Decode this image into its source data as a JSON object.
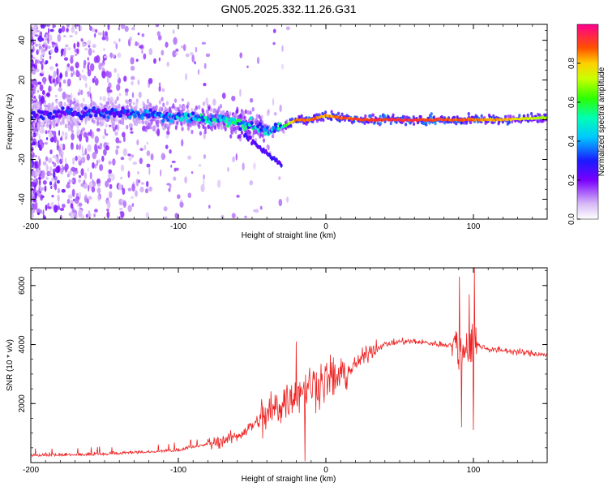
{
  "figure_title": "GN05.2025.332.11.26.G31",
  "chart_data": [
    {
      "type": "heatmap",
      "title": "GN05.2025.332.11.26.G31",
      "xlabel": "Height of straight line (km)",
      "ylabel": "Frequency (Hz)",
      "xlim": [
        -200,
        150
      ],
      "ylim": [
        -50,
        48
      ],
      "xticks": [
        -200,
        -100,
        0,
        100
      ],
      "yticks": [
        -40,
        -20,
        0,
        20,
        40
      ],
      "colorbar": {
        "label": "Normalized spectral amplitude",
        "range": [
          0,
          1
        ],
        "ticks": [
          0.0,
          0.2,
          0.4,
          0.6,
          0.8
        ],
        "tick_labels": [
          "0.0",
          "0.2",
          "0.4",
          "0.6",
          "0.8"
        ]
      },
      "ridge": {
        "description_points_height_km": [
          -200,
          -160,
          -120,
          -90,
          -70,
          -55,
          -45,
          -35,
          -30,
          -20,
          -10,
          0,
          10,
          30,
          60,
          90,
          100,
          120,
          150
        ],
        "frequency_hz": [
          2,
          4,
          3,
          1,
          0,
          -2,
          -4,
          -6,
          -4,
          0,
          0,
          2,
          1,
          0,
          0,
          0,
          0,
          0,
          1
        ],
        "amplitude": [
          0.25,
          0.3,
          0.35,
          0.45,
          0.5,
          0.5,
          0.45,
          0.4,
          0.5,
          0.9,
          0.9,
          0.85,
          0.9,
          0.95,
          0.95,
          0.9,
          0.9,
          0.85,
          0.7
        ]
      }
    },
    {
      "type": "line",
      "xlabel": "Height of straight line (km)",
      "ylabel": "SNR (10 * v/v)",
      "xlim": [
        -200,
        150
      ],
      "ylim": [
        0,
        6600
      ],
      "xticks": [
        -200,
        -100,
        0,
        100
      ],
      "yticks": [
        2000,
        4000,
        6000
      ],
      "series": [
        {
          "name": "SNR",
          "color": "#ee2222",
          "trend_x": [
            -200,
            -150,
            -100,
            -80,
            -60,
            -40,
            -30,
            -20,
            -10,
            0,
            10,
            20,
            30,
            40,
            50,
            60,
            70,
            80,
            85,
            90,
            95,
            100,
            105,
            110,
            120,
            130,
            140,
            150
          ],
          "trend_y": [
            200,
            250,
            380,
            600,
            900,
            1600,
            2000,
            2400,
            2600,
            2800,
            2900,
            3300,
            3800,
            4000,
            4100,
            4100,
            4050,
            4000,
            4000,
            3900,
            3900,
            4000,
            3950,
            3850,
            3800,
            3750,
            3700,
            3650
          ],
          "spikes": [
            {
              "x": 90.5,
              "y": 6300
            },
            {
              "x": 92,
              "y": 1200
            },
            {
              "x": 97,
              "y": 5700
            },
            {
              "x": 100.5,
              "y": 6600
            },
            {
              "x": 100,
              "y": 1100
            },
            {
              "x": -20,
              "y": 4100
            },
            {
              "x": -14,
              "y": 50
            }
          ]
        }
      ]
    }
  ]
}
